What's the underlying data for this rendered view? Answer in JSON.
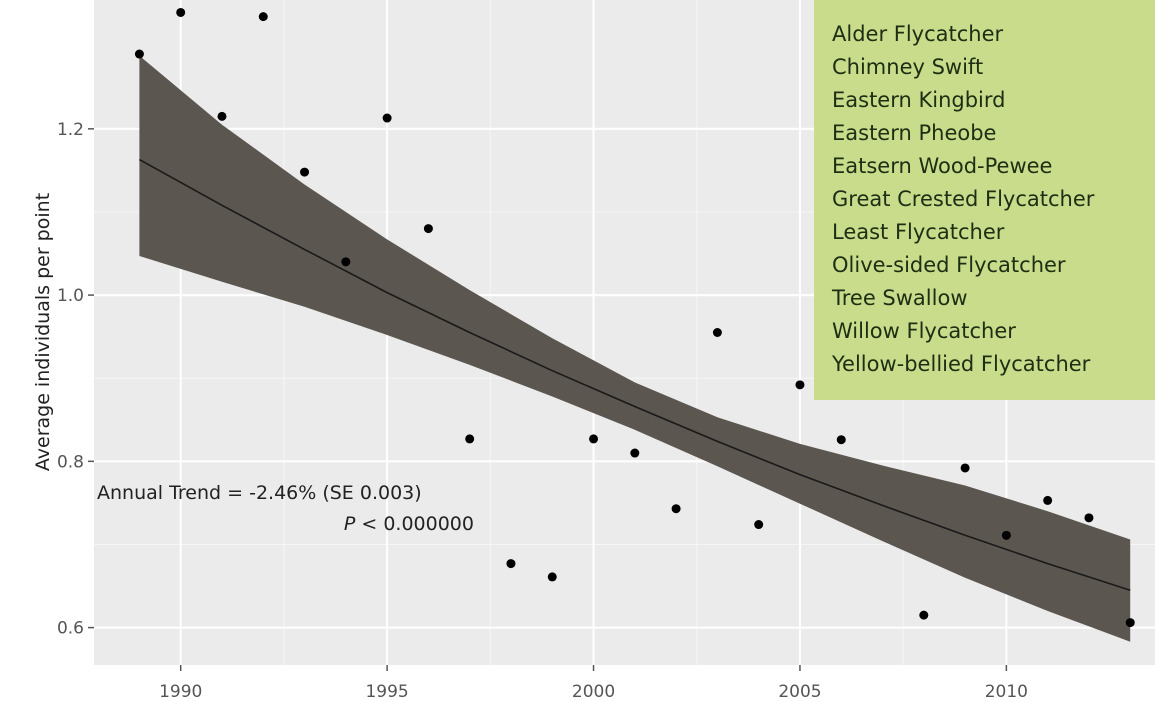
{
  "chart_data": {
    "type": "scatter",
    "title": "",
    "xlabel": "",
    "ylabel": "Average individuals per point",
    "xlim": [
      1987.9,
      2013.6
    ],
    "ylim": [
      0.555,
      1.355
    ],
    "x_ticks": [
      1990,
      1995,
      2000,
      2005,
      2010
    ],
    "y_ticks": [
      0.6,
      0.8,
      1.0,
      1.2
    ],
    "y_tick_labels": [
      "0.6",
      "0.8",
      "1.0",
      "1.2"
    ],
    "grid": true,
    "series": [
      {
        "type": "scatter",
        "x": [
          1989,
          1990,
          1991,
          1992,
          1993,
          1994,
          1995,
          1996,
          1997,
          1998,
          1999,
          2000,
          2001,
          2002,
          2003,
          2004,
          2005,
          2006,
          2008,
          2009,
          2010,
          2011,
          2012,
          2013
        ],
        "y": [
          1.29,
          1.34,
          1.215,
          1.335,
          1.148,
          1.04,
          1.213,
          1.08,
          0.827,
          0.677,
          0.661,
          0.827,
          0.81,
          0.743,
          0.955,
          0.724,
          0.892,
          0.826,
          0.615,
          0.792,
          0.711,
          0.753,
          0.732,
          0.606
        ]
      },
      {
        "type": "line",
        "x": [
          1989,
          1991,
          1993,
          1995,
          1997,
          1999,
          2001,
          2003,
          2005,
          2007,
          2009,
          2011,
          2013
        ],
        "y": [
          1.163,
          1.108,
          1.055,
          1.003,
          0.955,
          0.909,
          0.866,
          0.824,
          0.784,
          0.747,
          0.711,
          0.677,
          0.645
        ]
      }
    ],
    "confidence_band": {
      "x": [
        1989,
        1991,
        1993,
        1995,
        1997,
        1999,
        2001,
        2003,
        2005,
        2007,
        2009,
        2011,
        2013
      ],
      "lower": [
        1.047,
        1.016,
        0.986,
        0.952,
        0.916,
        0.878,
        0.838,
        0.794,
        0.749,
        0.704,
        0.66,
        0.62,
        0.583
      ],
      "upper": [
        1.288,
        1.205,
        1.133,
        1.067,
        1.006,
        0.948,
        0.895,
        0.853,
        0.821,
        0.795,
        0.771,
        0.74,
        0.706
      ]
    },
    "legend": {
      "placement": "top-right",
      "entries": [
        "Alder Flycatcher",
        "Chimney Swift",
        "Eastern Kingbird",
        "Eastern Pheobe",
        "Eatsern Wood-Pewee",
        "Great Crested Flycatcher",
        "Least Flycatcher",
        "Olive-sided Flycatcher",
        "Tree Swallow",
        "Willow Flycatcher",
        "Yellow-bellied Flycatcher"
      ]
    },
    "annotations": {
      "trend": "Annual Trend = -2.46% (SE 0.003)",
      "p_symbol": "P",
      "p_rest": " < 0.000000"
    }
  },
  "colors": {
    "panel": "#ebebeb",
    "grid": "#ffffff",
    "band": "#5c5650",
    "line": "#1a1a1a",
    "point": "#000000",
    "legend_bg": "#c8dc8c"
  }
}
